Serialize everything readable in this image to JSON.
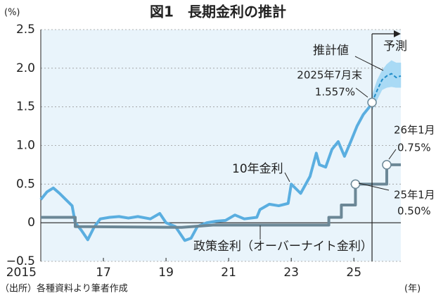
{
  "chart_data": {
    "type": "line",
    "title": "図1　長期金利の推計",
    "y_unit": "(%)",
    "x_unit": "(年)",
    "source": "（出所）各種資料より筆者作成",
    "xlim": [
      2015,
      2026.5
    ],
    "ylim": [
      -0.5,
      2.5
    ],
    "xticks": [
      2015,
      {
        "value": 2017,
        "label": "17"
      },
      {
        "value": 2019,
        "label": "19"
      },
      {
        "value": 2021,
        "label": "21"
      },
      {
        "value": 2023,
        "label": "23"
      },
      {
        "value": 2025,
        "label": "25"
      }
    ],
    "yticks": [
      {
        "value": -0.5,
        "label": "−0.5"
      },
      0,
      0.5,
      {
        "value": 1,
        "label": "1.0"
      },
      1.5,
      {
        "value": 2,
        "label": "2.0"
      },
      2.5
    ],
    "grid": true,
    "background": "#e9f4fb",
    "series": [
      {
        "name": "10年金利",
        "color": "#5aaee0",
        "x": [
          2015.0,
          2015.2,
          2015.4,
          2015.6,
          2015.8,
          2016.0,
          2016.1,
          2016.3,
          2016.5,
          2016.7,
          2016.9,
          2017.2,
          2017.5,
          2017.8,
          2018.1,
          2018.5,
          2018.8,
          2019.0,
          2019.3,
          2019.6,
          2019.8,
          2020.0,
          2020.3,
          2020.6,
          2020.9,
          2021.2,
          2021.5,
          2021.9,
          2022.0,
          2022.3,
          2022.6,
          2022.9,
          2023.0,
          2023.3,
          2023.6,
          2023.8,
          2023.9,
          2024.1,
          2024.3,
          2024.5,
          2024.7,
          2024.9,
          2025.1,
          2025.3,
          2025.5,
          2025.58
        ],
        "values": [
          0.3,
          0.4,
          0.45,
          0.38,
          0.3,
          0.22,
          0.0,
          -0.1,
          -0.22,
          -0.06,
          0.05,
          0.07,
          0.08,
          0.06,
          0.08,
          0.05,
          0.12,
          0.0,
          -0.05,
          -0.23,
          -0.2,
          -0.05,
          0.0,
          0.02,
          0.03,
          0.1,
          0.05,
          0.07,
          0.17,
          0.24,
          0.22,
          0.25,
          0.5,
          0.38,
          0.6,
          0.9,
          0.75,
          0.72,
          0.95,
          1.05,
          0.86,
          1.05,
          1.25,
          1.4,
          1.5,
          1.557
        ]
      },
      {
        "name": "政策金利（オーバーナイト金利）",
        "color": "#6b8796",
        "x": [
          2015,
          2016.1,
          2016.1,
          2019.5,
          2020.5,
          2024.2,
          2024.2,
          2024.6,
          2024.6,
          2025.05,
          2025.05,
          2026.05,
          2026.05,
          2026.5
        ],
        "values": [
          0.07,
          0.07,
          -0.05,
          -0.06,
          -0.03,
          -0.03,
          0.07,
          0.07,
          0.23,
          0.23,
          0.5,
          0.5,
          0.75,
          0.75
        ]
      },
      {
        "name": "推計値",
        "color": "#1f8cc8",
        "band_color": "#a9daf5",
        "x": [
          2025.58,
          2025.75,
          2025.9,
          2026.05,
          2026.2,
          2026.35,
          2026.5
        ],
        "values": [
          1.557,
          1.72,
          1.85,
          1.9,
          1.93,
          1.88,
          1.9
        ],
        "lower": [
          1.45,
          1.6,
          1.72,
          1.75,
          1.76,
          1.75,
          1.75
        ],
        "upper": [
          1.65,
          1.85,
          1.97,
          2.05,
          2.1,
          2.07,
          2.07
        ]
      }
    ],
    "annotations": [
      "予測",
      "2025年7月末",
      "1.557%",
      "26年1月",
      "0.75%",
      "25年1月",
      "0.50%"
    ]
  }
}
